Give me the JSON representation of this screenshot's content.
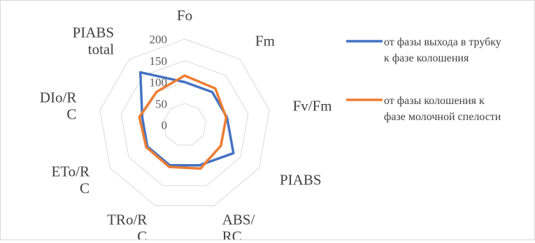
{
  "chart_data": {
    "type": "radar",
    "categories": [
      [
        "Fo"
      ],
      [
        "Fm"
      ],
      [
        "Fv/Fm"
      ],
      [
        "PIABS"
      ],
      [
        "ABS/",
        "RC"
      ],
      [
        "TRo/R",
        "C"
      ],
      [
        "ETo/R",
        "C"
      ],
      [
        "DIo/R",
        "C"
      ],
      [
        "PIABS",
        "total"
      ]
    ],
    "radial_ticks": [
      "0",
      "50",
      "100",
      "150",
      "200"
    ],
    "rlim": [
      0,
      200
    ],
    "grid": true,
    "legend_position": "right",
    "series": [
      {
        "name_lines": [
          "от фазы выхода в трубку",
          "к фазе колошения"
        ],
        "color": "#4472c4",
        "values": [
          100,
          100,
          100,
          131,
          100,
          100,
          100,
          100,
          160
        ]
      },
      {
        "name_lines": [
          "от фазы колошения к",
          "фазе молочной спелости"
        ],
        "color": "#ed7d31",
        "values": [
          115,
          111,
          98,
          97,
          108,
          104,
          103,
          107,
          101
        ]
      }
    ]
  }
}
